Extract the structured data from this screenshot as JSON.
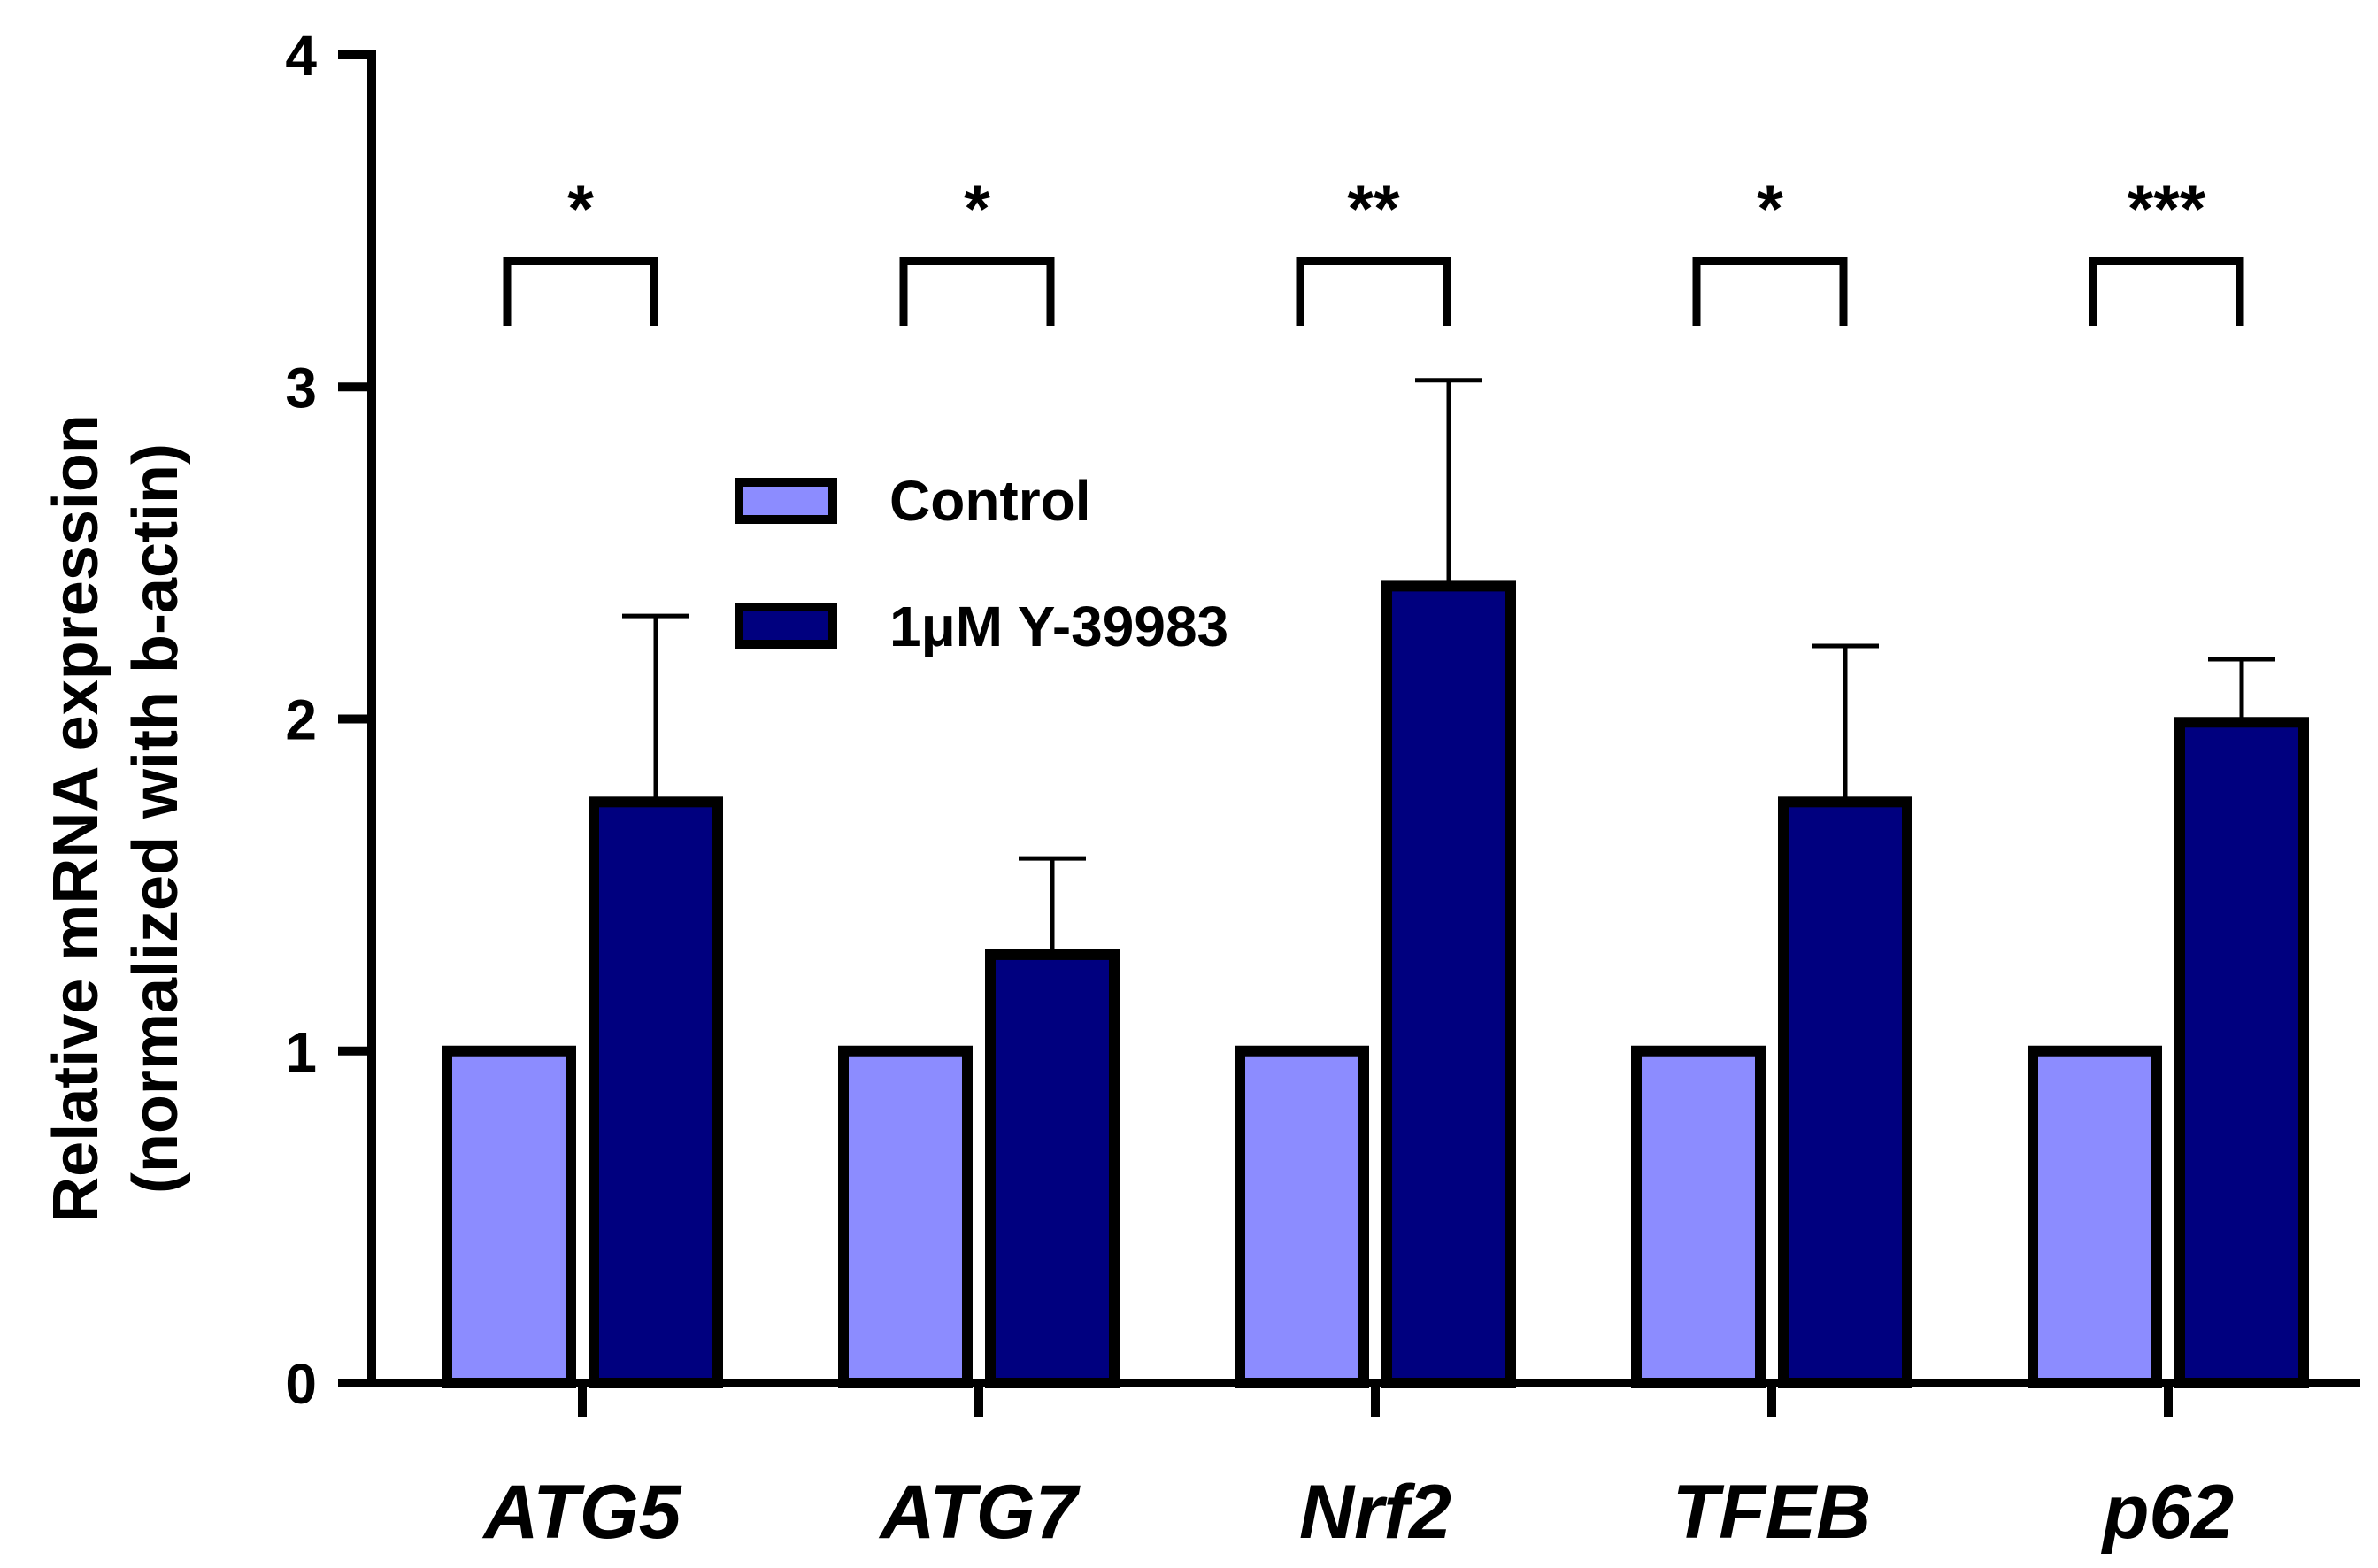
{
  "chart_data": {
    "type": "bar",
    "title": "",
    "xlabel": "",
    "ylabel_lines": [
      "Relative mRNA expression",
      "(normalized with b-actin)"
    ],
    "ylim": [
      0,
      4
    ],
    "yticks": [
      "0",
      "1",
      "2",
      "3",
      "4"
    ],
    "categories": [
      "ATG5",
      "ATG7",
      "Nrf2",
      "TFEB",
      "p62"
    ],
    "series": [
      {
        "name": "Control",
        "color": "#8c8cff",
        "values": [
          1,
          1,
          1,
          1,
          1
        ],
        "error": [
          0,
          0,
          0,
          0,
          0
        ]
      },
      {
        "name": "1μM Y-39983",
        "color": "#00007f",
        "values": [
          1.75,
          1.29,
          2.4,
          1.75,
          1.99
        ],
        "error": [
          0.56,
          0.29,
          0.62,
          0.47,
          0.19
        ]
      }
    ],
    "significance": [
      "*",
      "*",
      "**",
      "*",
      "***"
    ],
    "legend_position": "upper-center"
  }
}
